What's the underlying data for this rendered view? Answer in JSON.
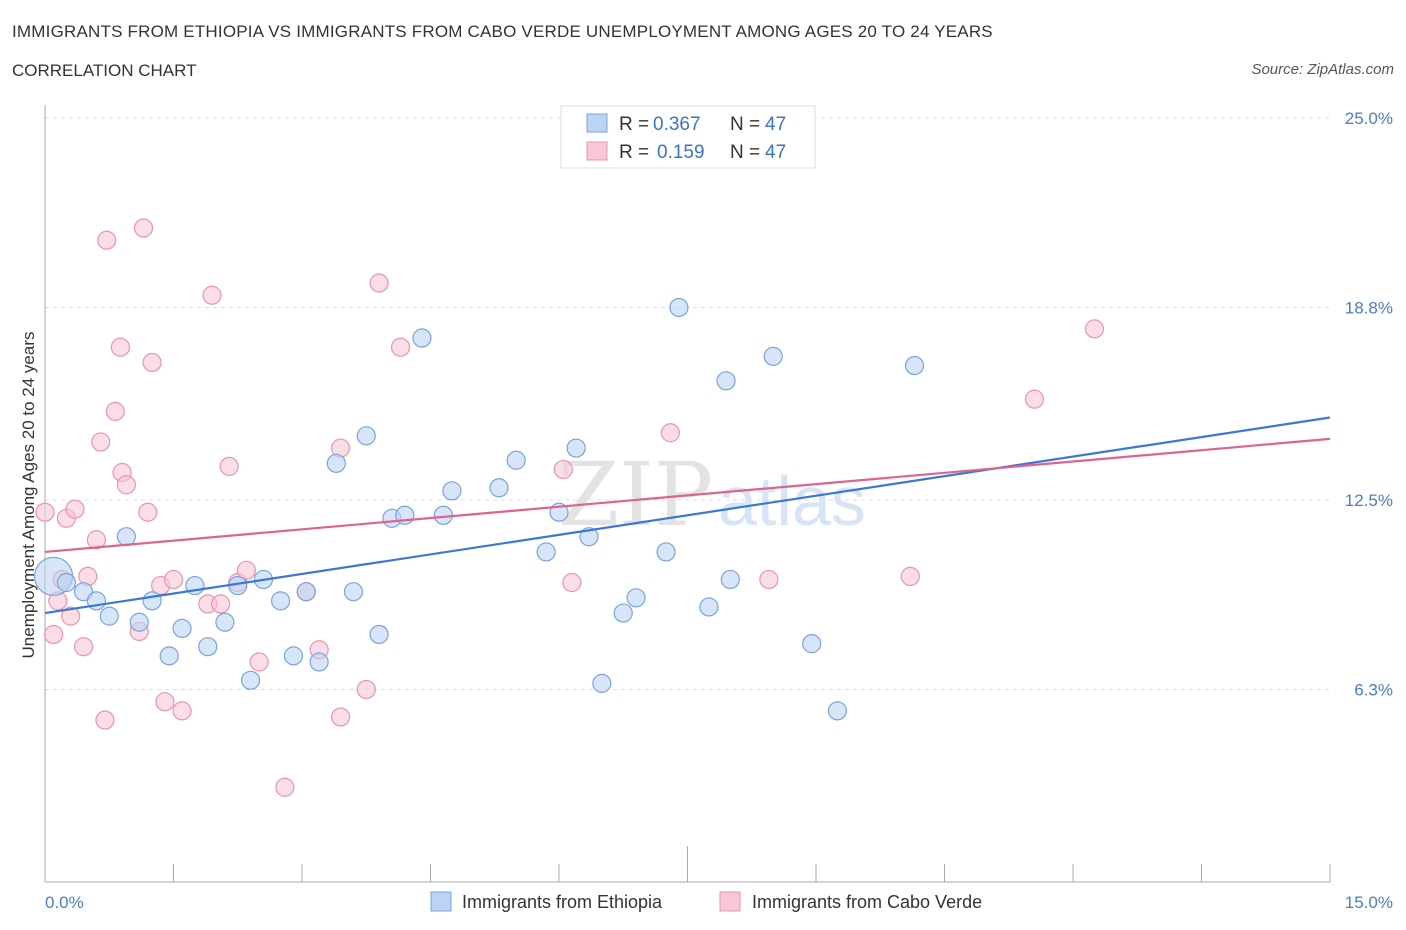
{
  "title": "IMMIGRANTS FROM ETHIOPIA VS IMMIGRANTS FROM CABO VERDE UNEMPLOYMENT AMONG AGES 20 TO 24 YEARS",
  "subtitle": "CORRELATION CHART",
  "source": "Source: ZipAtlas.com",
  "watermark": "ZIPatlas",
  "legend": {
    "r_label": "R =",
    "n_label": "N =",
    "rows": [
      {
        "r": "0.367",
        "n": "47"
      },
      {
        "r": "0.159",
        "n": "47"
      }
    ]
  },
  "bottom_legend": [
    "Immigrants from Ethiopia",
    "Immigrants from Cabo Verde"
  ],
  "chart_data": {
    "type": "scatter",
    "title": "",
    "xlabel": "",
    "ylabel": "Unemployment Among Ages 20 to 24 years",
    "xlim": [
      0,
      15
    ],
    "ylim": [
      0,
      25
    ],
    "x_tick_labels": [
      "0.0%",
      "15.0%"
    ],
    "y_tick_values": [
      6.3,
      12.5,
      18.8,
      25.0
    ],
    "y_tick_labels": [
      "6.3%",
      "12.5%",
      "18.8%",
      "25.0%"
    ],
    "grid": true,
    "colors": {
      "ethiopia_fill": "#a9c8f0",
      "ethiopia_line": "#3b78d6",
      "caboverde_fill": "#f5b8ca",
      "caboverde_line": "#e0628e",
      "tick": "#4a7cc9"
    },
    "series": [
      {
        "name": "Immigrants from Ethiopia",
        "trend": {
          "x": [
            0,
            15
          ],
          "y": [
            8.8,
            15.2
          ]
        },
        "points": [
          [
            0.1,
            10.0
          ],
          [
            0.25,
            9.8
          ],
          [
            0.45,
            9.5
          ],
          [
            0.6,
            9.2
          ],
          [
            0.75,
            8.7
          ],
          [
            0.95,
            11.3
          ],
          [
            1.1,
            8.5
          ],
          [
            1.25,
            9.2
          ],
          [
            1.45,
            7.4
          ],
          [
            1.6,
            8.3
          ],
          [
            1.75,
            9.7
          ],
          [
            1.9,
            7.7
          ],
          [
            2.1,
            8.5
          ],
          [
            2.25,
            9.7
          ],
          [
            2.4,
            6.6
          ],
          [
            2.55,
            9.9
          ],
          [
            2.75,
            9.2
          ],
          [
            2.9,
            7.4
          ],
          [
            3.05,
            9.5
          ],
          [
            3.2,
            7.2
          ],
          [
            3.4,
            13.7
          ],
          [
            3.6,
            9.5
          ],
          [
            3.75,
            14.6
          ],
          [
            3.9,
            8.1
          ],
          [
            4.05,
            11.9
          ],
          [
            4.2,
            12.0
          ],
          [
            4.4,
            17.8
          ],
          [
            4.65,
            12.0
          ],
          [
            4.75,
            12.8
          ],
          [
            5.3,
            12.9
          ],
          [
            5.5,
            13.8
          ],
          [
            5.85,
            10.8
          ],
          [
            6.0,
            12.1
          ],
          [
            6.2,
            14.2
          ],
          [
            6.35,
            11.3
          ],
          [
            6.5,
            6.5
          ],
          [
            6.75,
            8.8
          ],
          [
            6.9,
            9.3
          ],
          [
            7.25,
            10.8
          ],
          [
            7.4,
            18.8
          ],
          [
            7.75,
            9.0
          ],
          [
            7.95,
            16.4
          ],
          [
            8.0,
            9.9
          ],
          [
            8.5,
            17.2
          ],
          [
            8.95,
            7.8
          ],
          [
            9.25,
            5.6
          ],
          [
            10.15,
            16.9
          ]
        ]
      },
      {
        "name": "Immigrants from Cabo Verde",
        "trend": {
          "x": [
            0,
            15
          ],
          "y": [
            10.8,
            14.5
          ]
        },
        "points": [
          [
            0.0,
            12.1
          ],
          [
            0.1,
            8.1
          ],
          [
            0.15,
            9.2
          ],
          [
            0.2,
            9.9
          ],
          [
            0.25,
            11.9
          ],
          [
            0.3,
            8.7
          ],
          [
            0.35,
            12.2
          ],
          [
            0.45,
            7.7
          ],
          [
            0.5,
            10.0
          ],
          [
            0.6,
            11.2
          ],
          [
            0.65,
            14.4
          ],
          [
            0.7,
            5.3
          ],
          [
            0.72,
            21.0
          ],
          [
            0.82,
            15.4
          ],
          [
            0.88,
            17.5
          ],
          [
            0.9,
            13.4
          ],
          [
            0.95,
            13.0
          ],
          [
            1.1,
            8.2
          ],
          [
            1.15,
            21.4
          ],
          [
            1.2,
            12.1
          ],
          [
            1.25,
            17.0
          ],
          [
            1.35,
            9.7
          ],
          [
            1.4,
            5.9
          ],
          [
            1.5,
            9.9
          ],
          [
            1.6,
            5.6
          ],
          [
            1.9,
            9.1
          ],
          [
            1.95,
            19.2
          ],
          [
            2.05,
            9.1
          ],
          [
            2.15,
            13.6
          ],
          [
            2.25,
            9.8
          ],
          [
            2.35,
            10.2
          ],
          [
            2.5,
            7.2
          ],
          [
            2.8,
            3.1
          ],
          [
            3.05,
            9.5
          ],
          [
            3.2,
            7.6
          ],
          [
            3.45,
            14.2
          ],
          [
            3.45,
            5.4
          ],
          [
            3.75,
            6.3
          ],
          [
            3.9,
            19.6
          ],
          [
            4.15,
            17.5
          ],
          [
            6.05,
            13.5
          ],
          [
            6.15,
            9.8
          ],
          [
            7.3,
            14.7
          ],
          [
            8.45,
            9.9
          ],
          [
            10.1,
            10.0
          ],
          [
            11.55,
            15.8
          ],
          [
            12.25,
            18.1
          ]
        ]
      }
    ]
  }
}
